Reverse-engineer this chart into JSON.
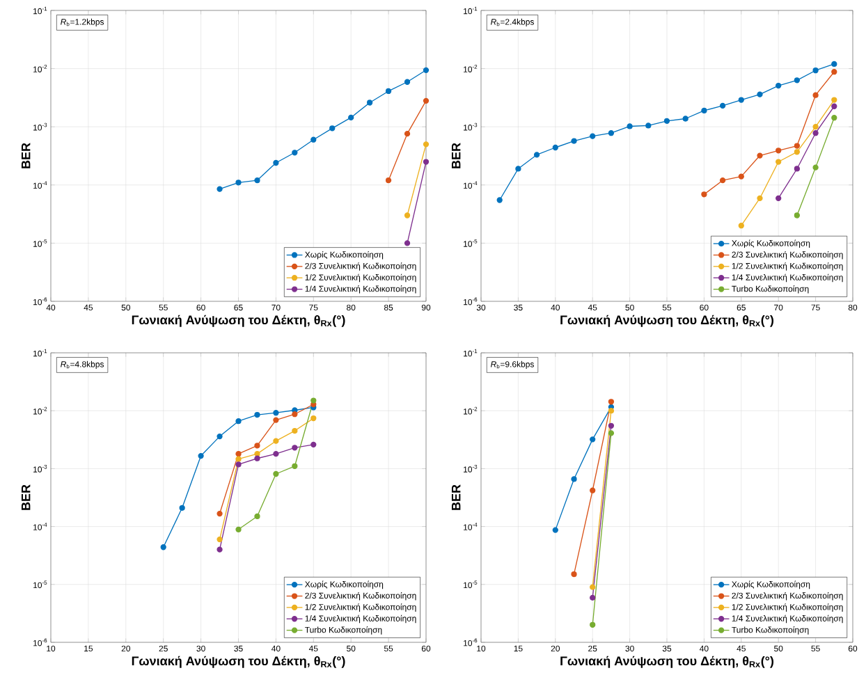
{
  "chart_data": [
    {
      "type": "line",
      "annotations": [
        "*R*$_{b}$=1.2kbps"
      ],
      "xlabel": "Γωνιακή Ανύψωση του Δέκτη, θ$_{Rx}$(°)",
      "ylabel": "BER",
      "log": "y",
      "grid": true,
      "legend": "bottom right",
      "marker": "circle",
      "line_style": "solid",
      "xlim": [
        40,
        90
      ],
      "xticks": [
        40,
        45,
        50,
        55,
        60,
        65,
        70,
        75,
        80,
        85,
        90
      ],
      "ylim": [
        1e-06,
        0.1
      ],
      "yticks": [
        {
          "value": 1e-06,
          "label": "10$^{-6}$"
        },
        {
          "value": 1e-05,
          "label": "10$^{-5}$"
        },
        {
          "value": 0.0001,
          "label": "10$^{-4}$"
        },
        {
          "value": 0.001,
          "label": "10$^{-3}$"
        },
        {
          "value": 0.01,
          "label": "10$^{-2}$"
        },
        {
          "value": 0.1,
          "label": "10$^{-1}$"
        }
      ],
      "series": [
        {
          "name": "Χωρίς Κωδικοποίηση",
          "color": "#0072bd",
          "x": [
            62.5,
            65,
            67.5,
            70,
            72.5,
            75,
            77.5,
            80,
            82.5,
            85,
            87.5,
            90
          ],
          "values": [
            8.5e-05,
            0.00011,
            0.00012,
            0.00024,
            0.00036,
            0.0006,
            0.00094,
            0.00144,
            0.0026,
            0.0041,
            0.0059,
            0.0094
          ]
        },
        {
          "name": "2/3 Συνελικτική Κωδικοποίηση",
          "color": "#d95319",
          "x": [
            85,
            87.5,
            90
          ],
          "values": [
            0.00012,
            0.00076,
            0.0028
          ]
        },
        {
          "name": "1/2 Συνελικτική Κωδικοποίηση",
          "color": "#edb120",
          "x": [
            87.5,
            90
          ],
          "values": [
            3e-05,
            0.0005
          ]
        },
        {
          "name": "1/4 Συνελικτική Κωδικοποίηση",
          "color": "#7e2f8e",
          "x": [
            87.5,
            90
          ],
          "values": [
            1e-05,
            0.00025
          ]
        }
      ]
    },
    {
      "type": "line",
      "annotations": [
        "*R*$_{b}$=2.4kbps"
      ],
      "xlabel": "Γωνιακή Ανύψωση του Δέκτη, θ$_{Rx}$(°)",
      "ylabel": "BER",
      "log": "y",
      "grid": true,
      "legend": "bottom right",
      "marker": "circle",
      "line_style": "solid",
      "xlim": [
        30,
        80
      ],
      "xticks": [
        30,
        35,
        40,
        45,
        50,
        55,
        60,
        65,
        70,
        75,
        80
      ],
      "ylim": [
        1e-06,
        0.1
      ],
      "yticks": [
        {
          "value": 1e-06,
          "label": "10$^{-6}$"
        },
        {
          "value": 1e-05,
          "label": "10$^{-5}$"
        },
        {
          "value": 0.0001,
          "label": "10$^{-4}$"
        },
        {
          "value": 0.001,
          "label": "10$^{-3}$"
        },
        {
          "value": 0.01,
          "label": "10$^{-2}$"
        },
        {
          "value": 0.1,
          "label": "10$^{-1}$"
        }
      ],
      "series": [
        {
          "name": "Χωρίς Κωδικοποίηση",
          "color": "#0072bd",
          "x": [
            32.5,
            35,
            37.5,
            40,
            42.5,
            45,
            47.5,
            50,
            52.5,
            55,
            57.5,
            60,
            62.5,
            65,
            67.5,
            70,
            72.5,
            75,
            77.5
          ],
          "values": [
            5.5e-05,
            0.00019,
            0.00033,
            0.00044,
            0.00057,
            0.00069,
            0.00078,
            0.00102,
            0.00105,
            0.00126,
            0.00138,
            0.0019,
            0.0023,
            0.0029,
            0.0036,
            0.0051,
            0.0063,
            0.0093,
            0.012
          ]
        },
        {
          "name": "2/3 Συνελικτική Κωδικοποίηση",
          "color": "#d95319",
          "x": [
            60,
            62.5,
            65,
            67.5,
            70,
            72.5,
            75,
            77.5
          ],
          "values": [
            6.9e-05,
            0.00012,
            0.00014,
            0.00032,
            0.00039,
            0.00047,
            0.0035,
            0.0088
          ]
        },
        {
          "name": "1/2 Συνελικτική Κωδικοποίηση",
          "color": "#edb120",
          "x": [
            65,
            67.5,
            70,
            72.5,
            75,
            77.5
          ],
          "values": [
            2e-05,
            5.9e-05,
            0.00025,
            0.00037,
            0.001,
            0.0029
          ]
        },
        {
          "name": "1/4 Συνελικτική Κωδικοποίηση",
          "color": "#7e2f8e",
          "x": [
            70,
            72.5,
            75,
            77.5
          ],
          "values": [
            5.9e-05,
            0.00019,
            0.00078,
            0.00225
          ]
        },
        {
          "name": "Turbo Κωδικοποίηση",
          "color": "#77ac30",
          "x": [
            72.5,
            75,
            77.5
          ],
          "values": [
            3e-05,
            0.0002,
            0.00143
          ]
        }
      ]
    },
    {
      "type": "line",
      "annotations": [
        "*R*$_{b}$=4.8kbps"
      ],
      "xlabel": "Γωνιακή Ανύψωση του Δέκτη, θ$_{Rx}$(°)",
      "ylabel": "BER",
      "log": "y",
      "grid": true,
      "legend": "bottom right",
      "marker": "circle",
      "line_style": "solid",
      "xlim": [
        10,
        60
      ],
      "xticks": [
        10,
        15,
        20,
        25,
        30,
        35,
        40,
        45,
        50,
        55,
        60
      ],
      "ylim": [
        1e-06,
        0.1
      ],
      "yticks": [
        {
          "value": 1e-06,
          "label": "10$^{-6}$"
        },
        {
          "value": 1e-05,
          "label": "10$^{-5}$"
        },
        {
          "value": 0.0001,
          "label": "10$^{-4}$"
        },
        {
          "value": 0.001,
          "label": "10$^{-3}$"
        },
        {
          "value": 0.01,
          "label": "10$^{-2}$"
        },
        {
          "value": 0.1,
          "label": "10$^{-1}$"
        }
      ],
      "series": [
        {
          "name": "Χωρίς Κωδικοποίηση",
          "color": "#0072bd",
          "x": [
            25,
            27.5,
            30,
            32.5,
            35,
            37.5,
            40,
            42.5,
            45
          ],
          "values": [
            4.4e-05,
            0.00021,
            0.00166,
            0.0036,
            0.0066,
            0.0085,
            0.0092,
            0.0102,
            0.0114
          ]
        },
        {
          "name": "2/3 Συνελικτική Κωδικοποίηση",
          "color": "#d95319",
          "x": [
            32.5,
            35,
            37.5,
            40,
            42.5,
            45
          ],
          "values": [
            0.000167,
            0.0018,
            0.0025,
            0.0069,
            0.0087,
            0.0129
          ]
        },
        {
          "name": "1/2 Συνελικτική Κωδικοποίηση",
          "color": "#edb120",
          "x": [
            32.5,
            35,
            37.5,
            40,
            42.5,
            45
          ],
          "values": [
            6e-05,
            0.00146,
            0.0018,
            0.003,
            0.0045,
            0.0074
          ]
        },
        {
          "name": "1/4 Συνελικτική Κωδικοποίηση",
          "color": "#7e2f8e",
          "x": [
            32.5,
            35,
            37.5,
            40,
            42.5,
            45
          ],
          "values": [
            4e-05,
            0.00118,
            0.0015,
            0.0018,
            0.0023,
            0.0026
          ]
        },
        {
          "name": "Turbo Κωδικοποίηση",
          "color": "#77ac30",
          "x": [
            35,
            37.5,
            40,
            42.5,
            45
          ],
          "values": [
            8.9e-05,
            0.00015,
            0.00081,
            0.0011,
            0.015
          ]
        }
      ]
    },
    {
      "type": "line",
      "annotations": [
        "*R*$_{b}$=9.6kbps"
      ],
      "xlabel": "Γωνιακή Ανύψωση του Δέκτη, θ$_{Rx}$(°)",
      "ylabel": "BER",
      "log": "y",
      "grid": true,
      "legend": "bottom right",
      "marker": "circle",
      "line_style": "solid",
      "xlim": [
        10,
        60
      ],
      "xticks": [
        10,
        15,
        20,
        25,
        30,
        35,
        40,
        45,
        50,
        55,
        60
      ],
      "ylim": [
        1e-06,
        0.1
      ],
      "yticks": [
        {
          "value": 1e-06,
          "label": "10$^{-6}$"
        },
        {
          "value": 1e-05,
          "label": "10$^{-5}$"
        },
        {
          "value": 0.0001,
          "label": "10$^{-4}$"
        },
        {
          "value": 0.001,
          "label": "10$^{-3}$"
        },
        {
          "value": 0.01,
          "label": "10$^{-2}$"
        },
        {
          "value": 0.1,
          "label": "10$^{-1}$"
        }
      ],
      "series": [
        {
          "name": "Χωρίς Κωδικοποίηση",
          "color": "#0072bd",
          "x": [
            20,
            22.5,
            25,
            27.5
          ],
          "values": [
            8.7e-05,
            0.00066,
            0.0032,
            0.0116
          ]
        },
        {
          "name": "2/3 Συνελικτική Κωδικοποίηση",
          "color": "#d95319",
          "x": [
            22.5,
            25,
            27.5
          ],
          "values": [
            1.5e-05,
            0.00042,
            0.0143
          ]
        },
        {
          "name": "1/2 Συνελικτική Κωδικοποίηση",
          "color": "#edb120",
          "x": [
            25,
            27.5
          ],
          "values": [
            9e-06,
            0.01
          ]
        },
        {
          "name": "1/4 Συνελικτική Κωδικοποίηση",
          "color": "#7e2f8e",
          "x": [
            25,
            27.5
          ],
          "values": [
            5.9e-06,
            0.0055
          ]
        },
        {
          "name": "Turbo Κωδικοποίηση",
          "color": "#77ac30",
          "x": [
            25,
            27.5
          ],
          "values": [
            2e-06,
            0.0041
          ]
        }
      ]
    }
  ]
}
